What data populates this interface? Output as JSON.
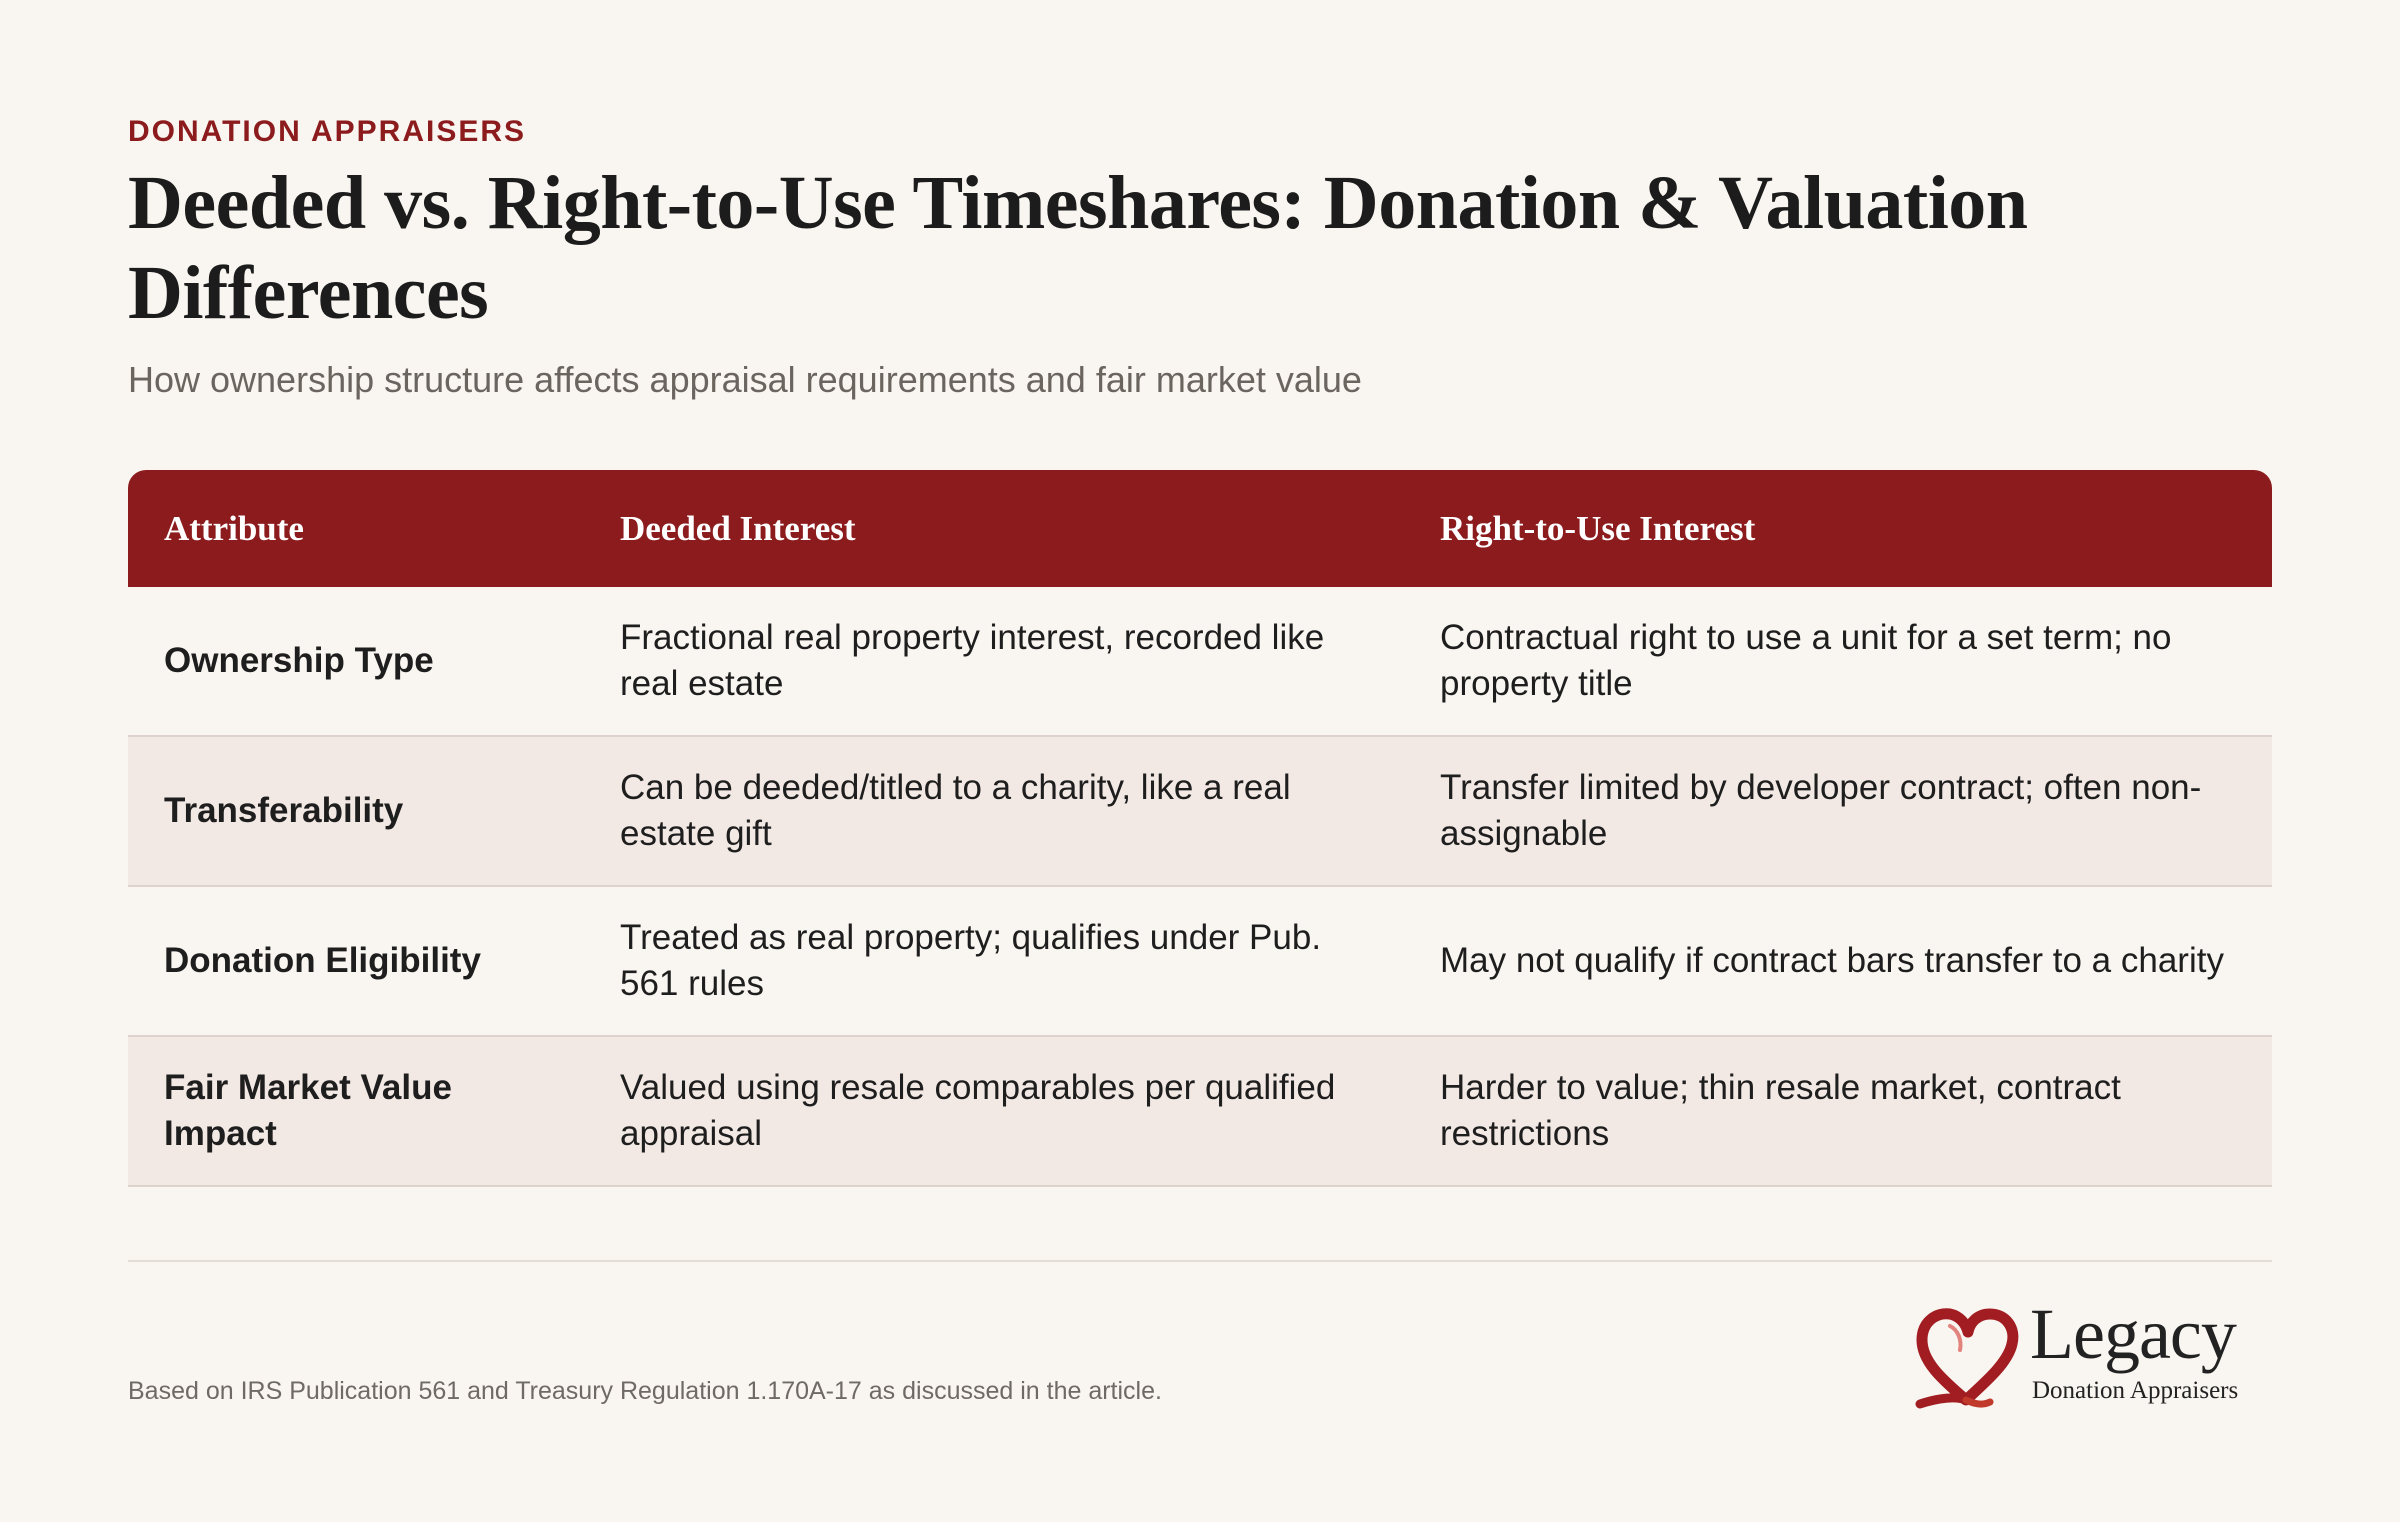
{
  "header": {
    "eyebrow": "DONATION APPRAISERS",
    "title": "Deeded vs. Right-to-Use Timeshares: Donation & Valuation Differences",
    "subtitle": "How ownership structure affects appraisal requirements and fair market value"
  },
  "table": {
    "columns": [
      "Attribute",
      "Deeded Interest",
      "Right-to-Use Interest"
    ],
    "rows": [
      {
        "attribute": "Ownership Type",
        "deeded": "Fractional real property interest, recorded like real estate",
        "rtu": "Contractual right to use a unit for a set term; no property title"
      },
      {
        "attribute": "Transferability",
        "deeded": "Can be deeded/titled to a charity, like a real estate gift",
        "rtu": "Transfer limited by developer contract; often non-assignable"
      },
      {
        "attribute": "Donation Eligibility",
        "deeded": "Treated as real property; qualifies under Pub. 561 rules",
        "rtu": "May not qualify if contract bars transfer to a charity"
      },
      {
        "attribute": "Fair Market Value Impact",
        "deeded": "Valued using resale comparables per qualified appraisal",
        "rtu": "Harder to value; thin resale market, contract restrictions"
      }
    ]
  },
  "footer": {
    "note": "Based on IRS Publication 561 and Treasury Regulation 1.170A-17 as discussed in the article.",
    "logo_word": "Legacy",
    "logo_sub": "Donation Appraisers",
    "logo_icon": "heart-ribbon-icon"
  },
  "colors": {
    "accent": "#8c1b1d",
    "background": "#f9f5f0",
    "row_alt": "#f3e9e4"
  }
}
